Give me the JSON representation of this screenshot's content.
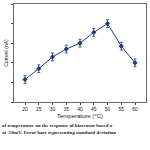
{
  "chart_data": {
    "type": "line",
    "x": [
      20,
      25,
      30,
      35,
      40,
      45,
      50,
      55,
      60
    ],
    "values": [
      23,
      34,
      46,
      54,
      60,
      71,
      80,
      57,
      40
    ],
    "error": [
      4,
      4,
      4,
      4,
      4,
      4,
      4,
      4,
      4
    ],
    "x_label": "Temperature (°C)",
    "y_label": "Current (nA)",
    "xlim": [
      16,
      64
    ],
    "xticks": [
      20,
      25,
      30,
      35,
      40,
      45,
      50,
      55,
      60
    ],
    "ylim": [
      0,
      100
    ],
    "yticks": [
      0,
      20,
      40,
      60,
      80,
      100
    ],
    "tick_labels": "x",
    "color": "#1f3d7a",
    "marker": "diamond",
    "caption": [
      "of temperature on the response of biosensor based o",
      "at -50mV. Error bars representing standard deviation"
    ]
  }
}
